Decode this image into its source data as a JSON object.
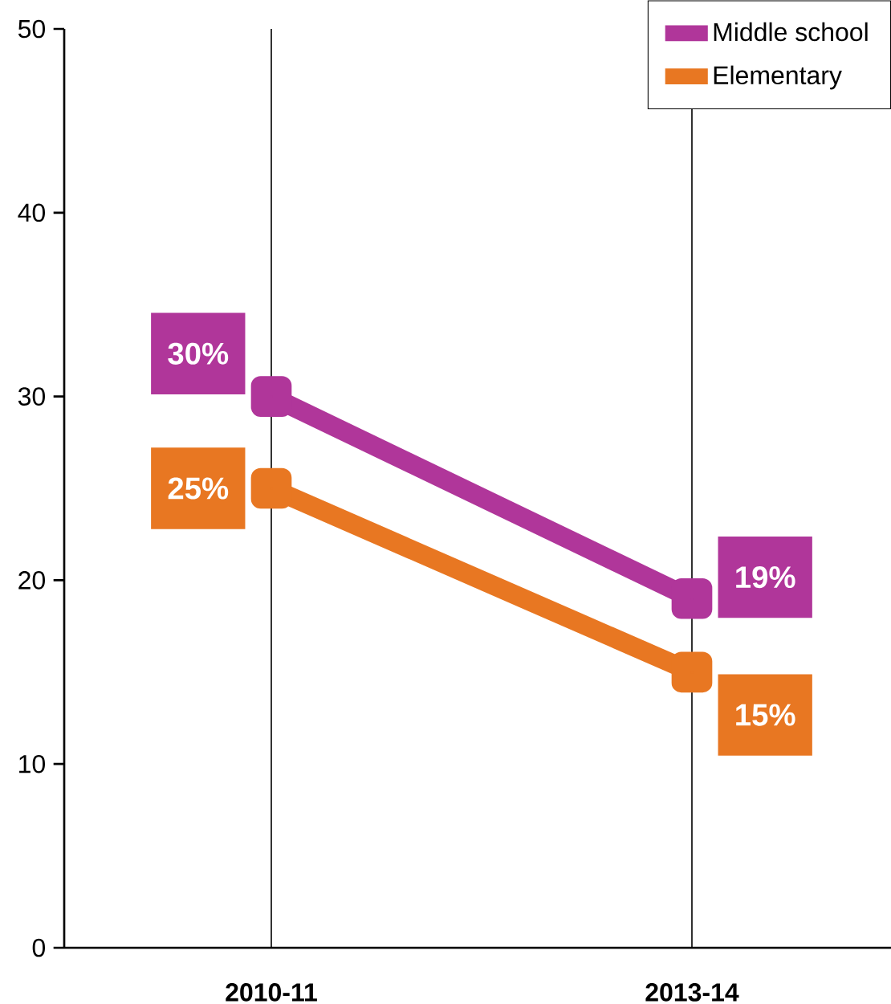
{
  "chart_data": {
    "type": "line",
    "categories": [
      "2010-11",
      "2013-14"
    ],
    "series": [
      {
        "name": "Middle school",
        "color": "#b0369a",
        "values": [
          30,
          19
        ],
        "value_labels": [
          "30%",
          "19%"
        ]
      },
      {
        "name": "Elementary",
        "color": "#e87722",
        "values": [
          25,
          15
        ],
        "value_labels": [
          "25%",
          "15%"
        ]
      }
    ],
    "ylim": [
      0,
      50
    ],
    "yticks": [
      0,
      10,
      20,
      30,
      40,
      50
    ],
    "grid": "x",
    "legend": "top right",
    "marker": "square",
    "line_style": "solid"
  }
}
